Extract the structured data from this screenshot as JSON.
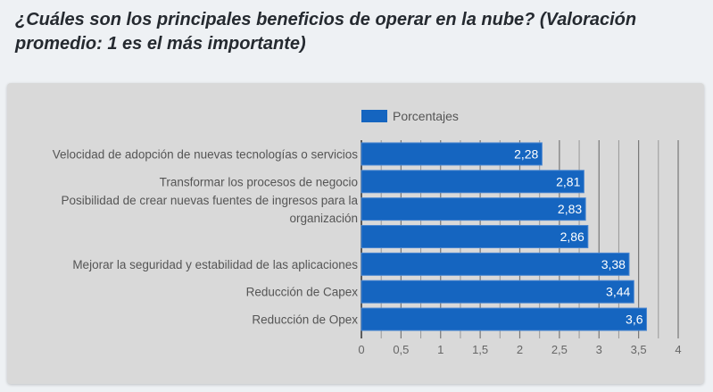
{
  "title": "¿Cuáles son los principales beneficios de operar en la nube?  (Valoración promedio: 1 es el más importante)",
  "chart_data": {
    "type": "bar",
    "orientation": "horizontal",
    "title": "¿Cuáles son los principales beneficios de operar en la nube?  (Valoración promedio: 1 es el más importante)",
    "categories": [
      [
        "Velocidad de adopción de nuevas tecnologías o servicios"
      ],
      [
        "Transformar los procesos de negocio"
      ],
      [
        "Posibilidad de crear nuevas fuentes de ingresos para la",
        "organización"
      ],
      [
        ""
      ],
      [
        "Mejorar la seguridad y estabilidad de las aplicaciones"
      ],
      [
        "Reducción de Capex"
      ],
      [
        "Reducción de Opex"
      ]
    ],
    "series": [
      {
        "name": "Porcentajes",
        "values": [
          2.28,
          2.81,
          2.83,
          2.86,
          3.38,
          3.44,
          3.6
        ],
        "labels": [
          "2,28",
          "2,81",
          "2,83",
          "2,86",
          "3,38",
          "3,44",
          "3,6"
        ],
        "color": "#1565c0"
      }
    ],
    "xlim": [
      0,
      4
    ],
    "xticks": [
      0,
      0.5,
      1,
      1.5,
      2,
      2.5,
      3,
      3.5,
      4
    ],
    "xtick_labels": [
      "0",
      "0,5",
      "1",
      "1,5",
      "2",
      "2,5",
      "3",
      "3,5",
      "4"
    ],
    "grid": true,
    "legend": "top"
  }
}
